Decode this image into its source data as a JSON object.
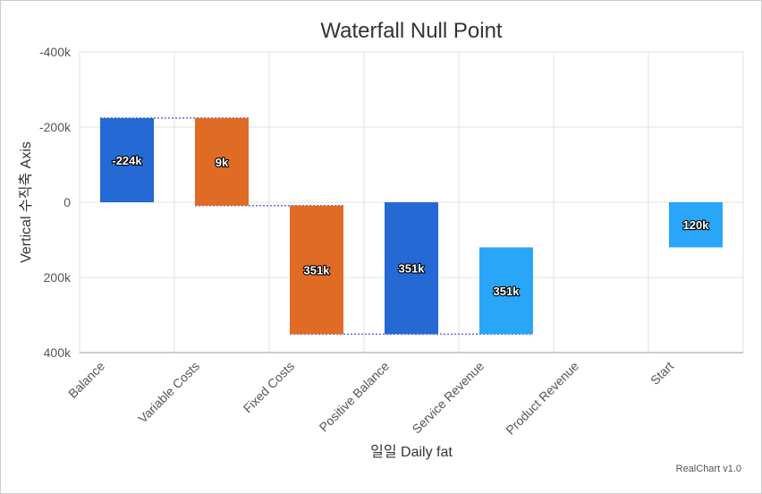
{
  "chart_data": {
    "type": "waterfall",
    "title": "Waterfall Null Point",
    "xlabel": "일일 Daily fat",
    "ylabel": "Vertical 수직축 Axis",
    "ylim": [
      -400000,
      400000
    ],
    "y_reversed": true,
    "y_ticks": [
      "-400k",
      "-200k",
      "0",
      "200k",
      "400k"
    ],
    "y_tick_values": [
      -400000,
      -200000,
      0,
      200000,
      400000
    ],
    "grid": true,
    "categories": [
      "Balance",
      "Variable Costs",
      "Fixed Costs",
      "Positive Balance",
      "Service Revenue",
      "Product Revenue",
      "Start"
    ],
    "bars": [
      {
        "category": "Balance",
        "from": 0,
        "to": -224000,
        "label": "-224k",
        "color": "#2469d4"
      },
      {
        "category": "Variable Costs",
        "from": -224000,
        "to": 9000,
        "label": "9k",
        "color": "#e06b25"
      },
      {
        "category": "Fixed Costs",
        "from": 9000,
        "to": 351000,
        "label": "351k",
        "color": "#e06b25"
      },
      {
        "category": "Positive Balance",
        "from": 0,
        "to": 351000,
        "label": "351k",
        "color": "#2469d4"
      },
      {
        "category": "Service Revenue",
        "from": 120000,
        "to": 351000,
        "label": "351k",
        "color": "#29a6f7"
      },
      {
        "category": "Product Revenue",
        "from": null,
        "to": null,
        "label": "",
        "color": "#29a6f7"
      },
      {
        "category": "Start",
        "from": 0,
        "to": 120000,
        "label": "120k",
        "color": "#29a6f7"
      }
    ],
    "connectors": [
      {
        "from_category": "Balance",
        "to_category": "Variable Costs",
        "value": -224000
      },
      {
        "from_category": "Variable Costs",
        "to_category": "Fixed Costs",
        "value": 9000
      },
      {
        "from_category": "Fixed Costs",
        "to_category": "Service Revenue",
        "value": 351000
      }
    ],
    "connector_color": "#6b6bd6",
    "credit": "RealChart v1.0"
  }
}
